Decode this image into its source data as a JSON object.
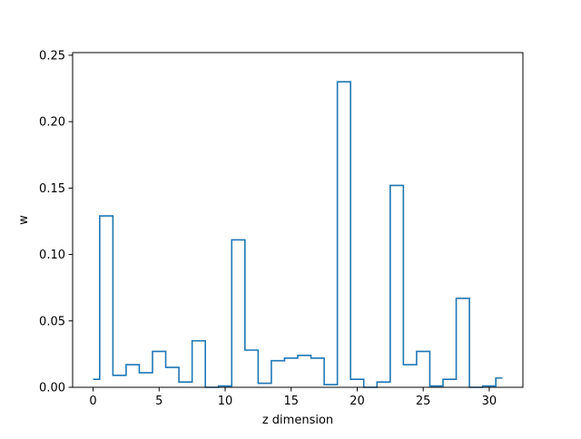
{
  "chart_data": {
    "type": "line",
    "style": "step-histogram",
    "xlabel": "z dimension",
    "ylabel": "w",
    "xlim": [
      -1.55,
      32.55
    ],
    "ylim": [
      0,
      0.252
    ],
    "x_ticks": [
      0,
      5,
      10,
      15,
      20,
      25,
      30
    ],
    "x_tick_labels": [
      "0",
      "5",
      "10",
      "15",
      "20",
      "25",
      "30"
    ],
    "y_ticks": [
      0,
      0.05,
      0.1,
      0.15,
      0.2,
      0.25
    ],
    "y_tick_labels": [
      "0.00",
      "0.05",
      "0.10",
      "0.15",
      "0.20",
      "0.25"
    ],
    "grid": false,
    "line_color": "#1f77b4",
    "x": [
      0,
      1,
      2,
      3,
      4,
      5,
      6,
      7,
      8,
      9,
      10,
      11,
      12,
      13,
      14,
      15,
      16,
      17,
      18,
      19,
      20,
      21,
      22,
      23,
      24,
      25,
      26,
      27,
      28,
      29,
      30,
      31
    ],
    "values": [
      0.006,
      0.129,
      0.009,
      0.017,
      0.011,
      0.027,
      0.015,
      0.004,
      0.035,
      0.0,
      0.001,
      0.111,
      0.028,
      0.003,
      0.02,
      0.022,
      0.024,
      0.022,
      0.002,
      0.23,
      0.006,
      0.0,
      0.004,
      0.152,
      0.017,
      0.027,
      0.001,
      0.006,
      0.067,
      0.0,
      0.001,
      0.007
    ]
  }
}
